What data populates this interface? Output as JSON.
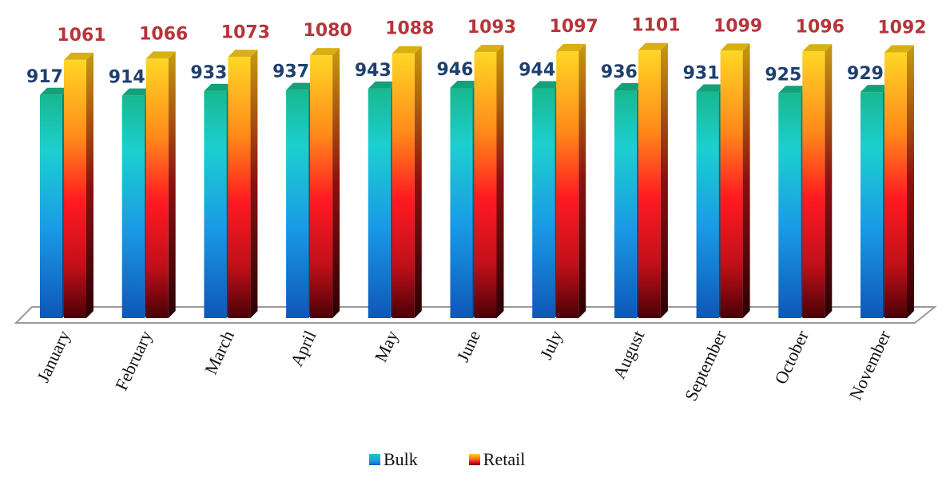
{
  "chart_data": {
    "type": "bar",
    "categories": [
      "January",
      "February",
      "March",
      "April",
      "May",
      "June",
      "July",
      "August",
      "September",
      "October",
      "November"
    ],
    "series": [
      {
        "name": "Bulk",
        "values": [
          917,
          914,
          933,
          937,
          943,
          946,
          944,
          936,
          931,
          925,
          929
        ],
        "color": "#1aa0e0"
      },
      {
        "name": "Retail",
        "values": [
          1061,
          1066,
          1073,
          1080,
          1088,
          1093,
          1097,
          1101,
          1099,
          1096,
          1092
        ],
        "color": "#ff3a1a"
      }
    ],
    "title": "",
    "xlabel": "",
    "ylabel": "",
    "ylim": [
      0,
      1100
    ],
    "grid": false,
    "legend_position": "bottom"
  }
}
